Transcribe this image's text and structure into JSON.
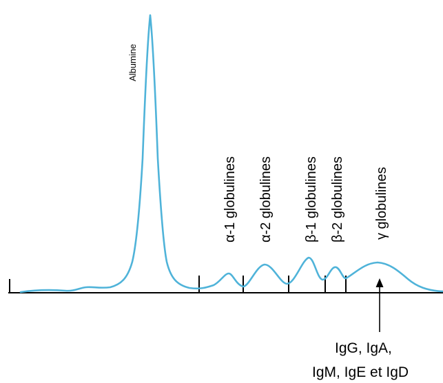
{
  "colors": {
    "curve": "#4fb3d9",
    "axis": "#000000",
    "text": "#000000"
  },
  "diagram": {
    "peak_label": "Albumine",
    "fractions": [
      {
        "label": "α-1  globulines"
      },
      {
        "label": "α-2  globulines"
      },
      {
        "label": "β-1  globulines"
      },
      {
        "label": "β-2  globulines"
      },
      {
        "label": "γ globulines"
      }
    ],
    "annotation": {
      "line1": "IgG, IgA,",
      "line2": "IgM, IgE et IgD"
    }
  }
}
